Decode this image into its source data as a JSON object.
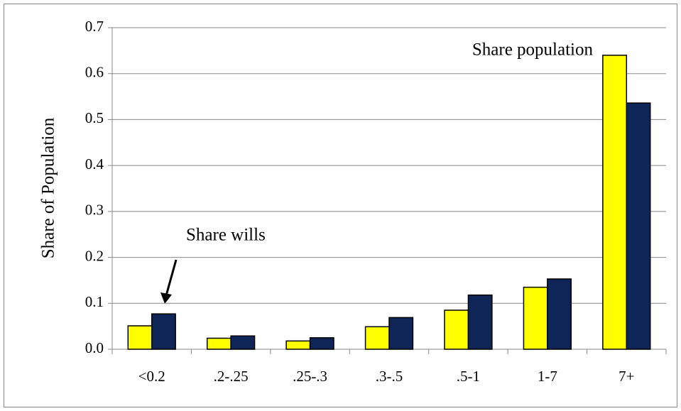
{
  "chart_data": {
    "type": "bar",
    "ylabel": "Share of  Population",
    "categories": [
      "<0.2",
      ".2-.25",
      ".25-.3",
      ".3-.5",
      ".5-1",
      "1-7",
      "7+"
    ],
    "series": [
      {
        "name": "Share population",
        "color": "#ffff00",
        "values": [
          0.051,
          0.024,
          0.018,
          0.049,
          0.085,
          0.135,
          0.64
        ]
      },
      {
        "name": "Share wills",
        "color": "#0f2557",
        "values": [
          0.077,
          0.029,
          0.025,
          0.069,
          0.118,
          0.153,
          0.536
        ]
      }
    ],
    "ylim": [
      0,
      0.7
    ],
    "yticks": [
      {
        "value": 0,
        "label": "0.0"
      },
      0.1,
      0.2,
      0.3,
      0.4,
      0.5,
      0.6,
      0.7
    ],
    "grid": true
  }
}
